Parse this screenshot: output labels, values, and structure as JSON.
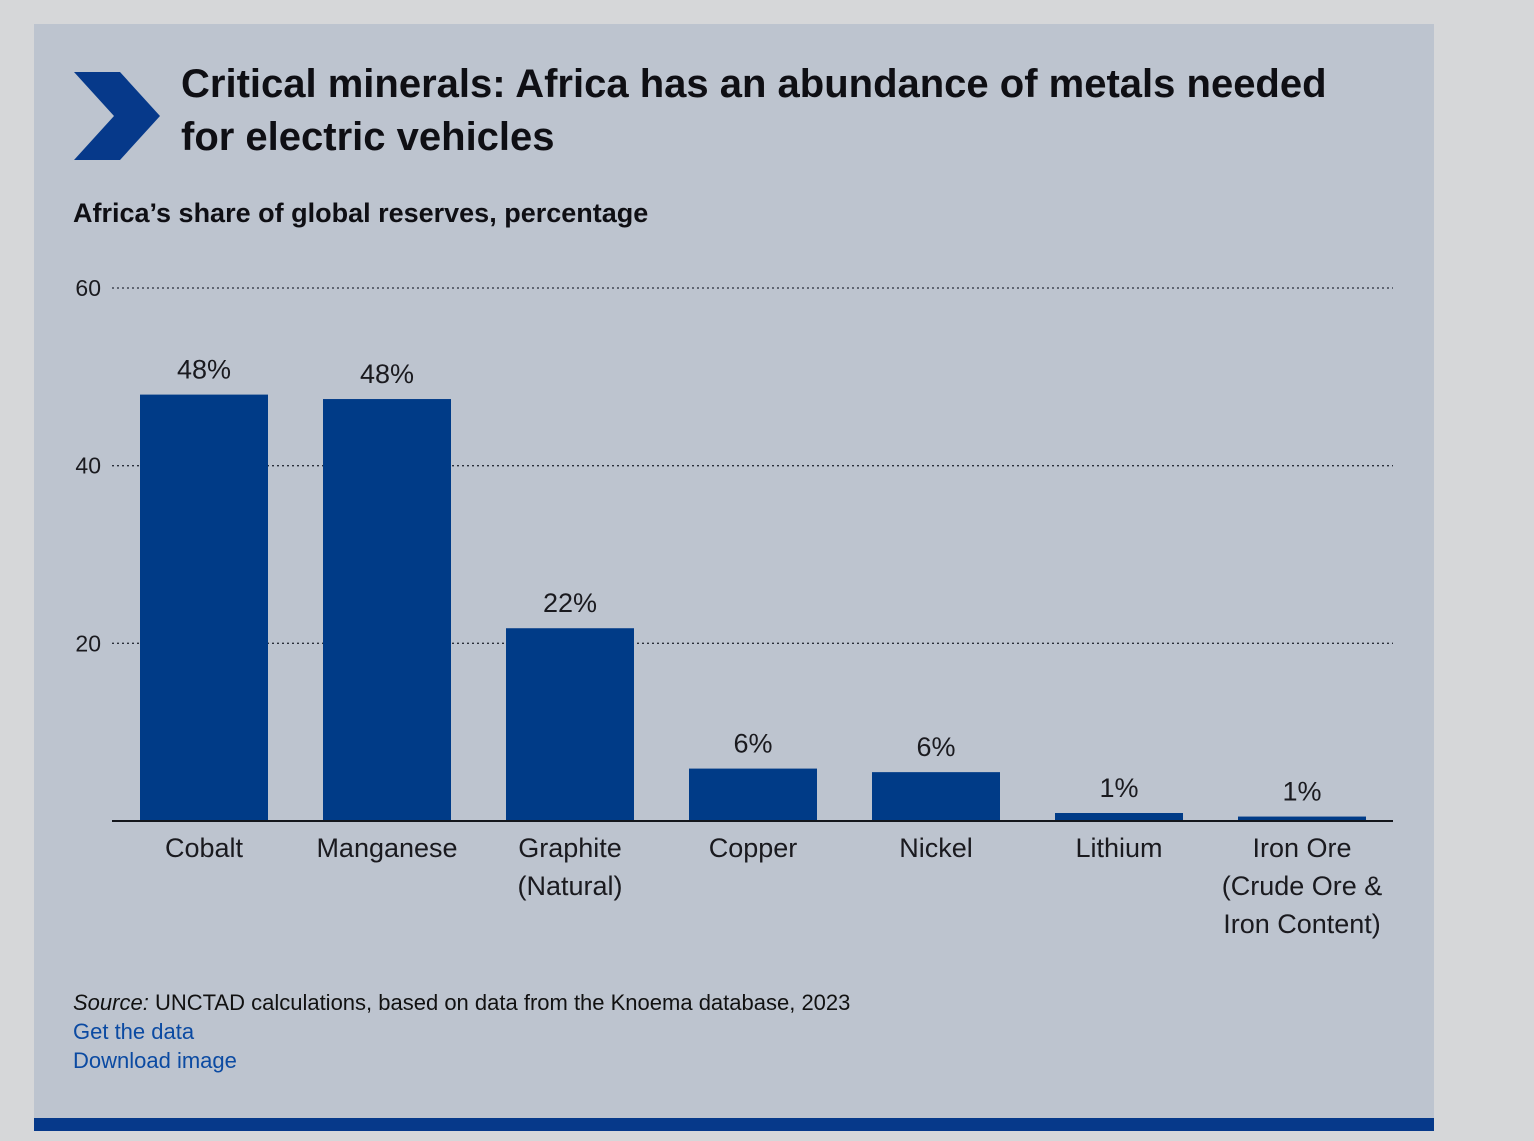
{
  "header": {
    "title": "Critical minerals: Africa has an abundance of metals needed for electric vehicles",
    "subtitle": "Africa’s share of global reserves, percentage"
  },
  "colors": {
    "bar": "#003b87",
    "background": "#bdc4cf",
    "accent": "#06398a",
    "link": "#0b4aa2"
  },
  "chart_data": {
    "type": "bar",
    "ylim": [
      0,
      60
    ],
    "yticks": [
      "20",
      "40",
      "60"
    ],
    "grid": true,
    "categories": [
      [
        "Cobalt"
      ],
      [
        "Manganese"
      ],
      [
        "Graphite",
        "(Natural)"
      ],
      [
        "Copper"
      ],
      [
        "Nickel"
      ],
      [
        "Lithium"
      ],
      [
        "Iron Ore",
        "(Crude Ore &",
        "Iron Content)"
      ]
    ],
    "values": [
      48,
      47.5,
      21.7,
      5.9,
      5.5,
      0.9,
      0.5
    ],
    "data_labels": [
      "48%",
      "48%",
      "22%",
      "6%",
      "6%",
      "1%",
      "1%"
    ]
  },
  "footer": {
    "source_prefix": "Source:",
    "source_text": " UNCTAD calculations, based on data from the Knoema database, 2023",
    "get_data_link": "Get the data",
    "download_link": "Download image"
  }
}
